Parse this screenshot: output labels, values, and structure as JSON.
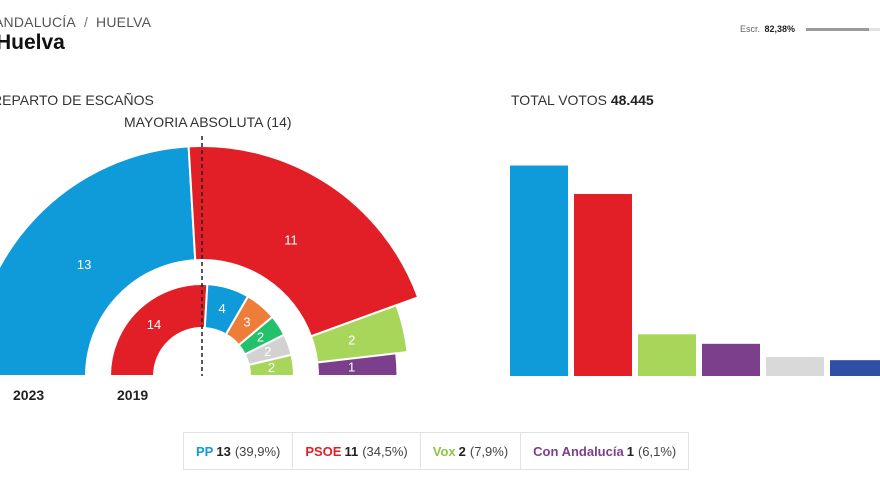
{
  "header": {
    "region": "ANDALUCÍA",
    "separator": "/",
    "province": "HUELVA",
    "title": "Huelva",
    "scrutiny_label": "Escr.",
    "scrutiny_value": "82,38%",
    "scrutiny_fraction": 0.8238
  },
  "seats_section": {
    "heading": "REPARTO DE ESCAÑOS",
    "majority_label": "MAYORIA ABSOLUTA (14)",
    "year_outer": "2023",
    "year_inner": "2019"
  },
  "votes_section": {
    "label": "TOTAL VOTOS",
    "total": "48.445"
  },
  "legend": [
    {
      "name": "PP",
      "seats": "13",
      "pct": "(39,9%)",
      "color": "#0f9ad9"
    },
    {
      "name": "PSOE",
      "seats": "11",
      "pct": "(34,5%)",
      "color": "#e21f26"
    },
    {
      "name": "Vox",
      "seats": "2",
      "pct": "(7,9%)",
      "color": "#8dc63f"
    },
    {
      "name": "Con Andalucía",
      "seats": "1",
      "pct": "(6,1%)",
      "color": "#7b3f8c"
    }
  ],
  "chart_data": [
    {
      "type": "pie",
      "subtype": "hemicycle",
      "year": "2023",
      "total_seats": 27,
      "majority": 14,
      "series": [
        {
          "name": "PP",
          "value": 13,
          "color": "#0f9ad9"
        },
        {
          "name": "PSOE",
          "value": 11,
          "color": "#e21f26"
        },
        {
          "name": "Vox",
          "value": 2,
          "color": "#a8d65b"
        },
        {
          "name": "Con Andalucía",
          "value": 1,
          "color": "#7b3f8c"
        }
      ]
    },
    {
      "type": "pie",
      "subtype": "hemicycle",
      "year": "2019",
      "total_seats": 27,
      "series": [
        {
          "value": 14,
          "color": "#e21f26"
        },
        {
          "value": 4,
          "color": "#0f9ad9"
        },
        {
          "value": 3,
          "color": "#ef7d3a"
        },
        {
          "value": 2,
          "color": "#22c16a"
        },
        {
          "value": 2,
          "color": "#d2d2d2"
        },
        {
          "value": 2,
          "color": "#a8d65b"
        }
      ]
    },
    {
      "type": "bar",
      "title": "TOTAL VOTOS 48.445",
      "ylim": [
        0,
        40
      ],
      "series": [
        {
          "name": "PP",
          "value": 39.9,
          "color": "#0f9ad9"
        },
        {
          "name": "PSOE",
          "value": 34.5,
          "color": "#e21f26"
        },
        {
          "name": "Vox",
          "value": 7.9,
          "color": "#a8d65b"
        },
        {
          "name": "Con Andalucía",
          "value": 6.1,
          "color": "#7b3f8c"
        },
        {
          "value": 3.6,
          "color": "#d9d9d9"
        },
        {
          "value": 3.0,
          "color": "#2e4fa3"
        }
      ]
    }
  ]
}
